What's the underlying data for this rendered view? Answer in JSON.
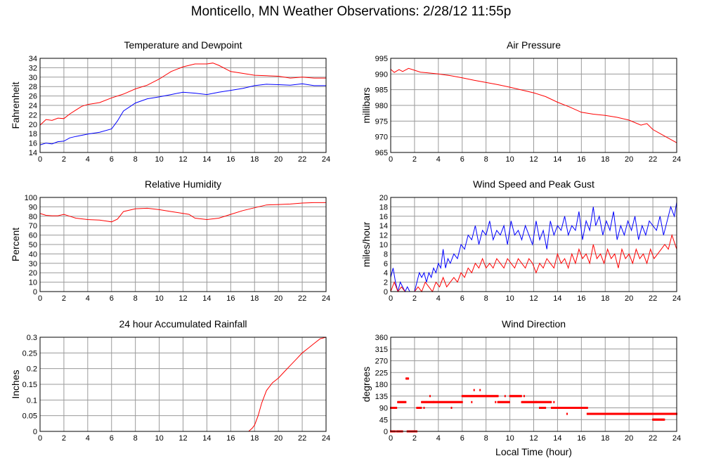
{
  "page_title": "Monticello, MN Weather Observations: 2/28/12 11:55p",
  "colors": {
    "temperature": "#ff0000",
    "dewpoint": "#0000ff",
    "gust": "#0000ff",
    "speed": "#ff0000",
    "grid": "#9a9a9a",
    "background": "#ffffff"
  },
  "chart_data": [
    {
      "id": "temperature-dewpoint",
      "type": "line",
      "title": "Temperature and Dewpoint",
      "ylabel": "Fahrenheit",
      "xlabel": "",
      "xlim": [
        0,
        24
      ],
      "ylim": [
        14,
        34
      ],
      "yticks": [
        14,
        16,
        18,
        20,
        22,
        24,
        26,
        28,
        30,
        32,
        34
      ],
      "xticks": [
        0,
        2,
        4,
        6,
        8,
        10,
        12,
        14,
        16,
        18,
        20,
        22,
        24
      ],
      "grid": true,
      "series": [
        {
          "color": "#ff0000",
          "x": [
            0,
            0.5,
            1,
            1.5,
            2,
            2.5,
            3,
            3.5,
            4,
            5,
            6,
            7,
            8,
            9,
            10,
            11,
            12,
            13,
            14,
            14.5,
            15,
            16,
            17,
            18,
            19,
            20,
            21,
            22,
            23,
            24
          ],
          "y": [
            19.8,
            21,
            20.8,
            21.3,
            21.2,
            22.2,
            23,
            23.8,
            24.2,
            24.6,
            25.6,
            26.4,
            27.5,
            28.3,
            29.6,
            31.2,
            32.2,
            32.8,
            32.8,
            33,
            32.5,
            31.2,
            30.8,
            30.4,
            30.3,
            30.2,
            29.8,
            30,
            29.8,
            29.8
          ]
        },
        {
          "color": "#0000ff",
          "x": [
            0,
            0.5,
            1,
            1.5,
            2,
            2.5,
            3,
            4,
            5,
            6,
            6.5,
            7,
            8,
            9,
            10,
            11,
            12,
            13,
            14,
            15,
            16,
            17,
            18,
            19,
            20,
            21,
            22,
            23,
            24
          ],
          "y": [
            15.6,
            16,
            15.8,
            16.3,
            16.4,
            17.1,
            17.4,
            17.9,
            18.3,
            19,
            20.7,
            22.8,
            24.5,
            25.4,
            25.8,
            26.3,
            26.8,
            26.6,
            26.3,
            26.8,
            27.2,
            27.6,
            28.2,
            28.5,
            28.4,
            28.3,
            28.6,
            28.2,
            28.2
          ]
        }
      ]
    },
    {
      "id": "air-pressure",
      "type": "line",
      "title": "Air Pressure",
      "ylabel": "millibars",
      "xlabel": "",
      "xlim": [
        0,
        24
      ],
      "ylim": [
        965,
        995
      ],
      "yticks": [
        965,
        970,
        975,
        980,
        985,
        990,
        995
      ],
      "xticks": [
        0,
        2,
        4,
        6,
        8,
        10,
        12,
        14,
        16,
        18,
        20,
        22,
        24
      ],
      "grid": true,
      "series": [
        {
          "color": "#ff0000",
          "x": [
            0,
            0.3,
            0.7,
            1,
            1.5,
            2,
            2.5,
            3,
            4,
            5,
            6,
            7,
            8,
            9,
            10,
            11,
            12,
            13,
            14,
            15,
            16,
            17,
            18,
            19,
            20,
            21,
            21.5,
            22,
            23,
            24
          ],
          "y": [
            991.5,
            990.5,
            991.4,
            990.8,
            991.8,
            991.2,
            990.6,
            990.4,
            990,
            989.5,
            988.8,
            988,
            987.3,
            986.6,
            985.8,
            984.9,
            984,
            982.8,
            981,
            979.5,
            977.8,
            977.2,
            976.8,
            976.2,
            975.3,
            973.7,
            974.2,
            972.3,
            970.2,
            968.1
          ]
        }
      ]
    },
    {
      "id": "relative-humidity",
      "type": "line",
      "title": "Relative Humidity",
      "ylabel": "Percent",
      "xlabel": "",
      "xlim": [
        0,
        24
      ],
      "ylim": [
        0,
        100
      ],
      "yticks": [
        0,
        10,
        20,
        30,
        40,
        50,
        60,
        70,
        80,
        90,
        100
      ],
      "xticks": [
        0,
        2,
        4,
        6,
        8,
        10,
        12,
        14,
        16,
        18,
        20,
        22,
        24
      ],
      "grid": true,
      "series": [
        {
          "color": "#ff0000",
          "x": [
            0,
            0.5,
            1,
            1.5,
            2,
            2.5,
            3,
            4,
            5,
            5.5,
            6,
            6.5,
            7,
            8,
            9,
            10,
            11,
            12,
            12.5,
            13,
            14,
            15,
            16,
            17,
            18,
            19,
            20,
            21,
            22,
            23,
            24
          ],
          "y": [
            83,
            81,
            80.5,
            80.5,
            82,
            80,
            78,
            76.5,
            76,
            75,
            74,
            77,
            85,
            88,
            88.5,
            87,
            85,
            83,
            82,
            78,
            76.5,
            78,
            82,
            86,
            89,
            92,
            92.5,
            93,
            94,
            94.5,
            94.5
          ]
        }
      ]
    },
    {
      "id": "wind-speed-gust",
      "type": "line",
      "title": "Wind Speed and Peak Gust",
      "ylabel": "miles/hour",
      "xlabel": "",
      "xlim": [
        0,
        24
      ],
      "ylim": [
        0,
        20
      ],
      "yticks": [
        0,
        2,
        4,
        6,
        8,
        10,
        12,
        14,
        16,
        18,
        20
      ],
      "xticks": [
        0,
        2,
        4,
        6,
        8,
        10,
        12,
        14,
        16,
        18,
        20,
        22,
        24
      ],
      "grid": true,
      "series": [
        {
          "color": "#0000ff",
          "x": [
            0,
            0.2,
            0.4,
            0.6,
            0.8,
            1,
            1.2,
            1.4,
            1.6,
            2,
            2.2,
            2.4,
            2.6,
            2.8,
            3,
            3.2,
            3.4,
            3.6,
            3.8,
            4,
            4.2,
            4.4,
            4.6,
            4.8,
            5,
            5.3,
            5.6,
            5.9,
            6.2,
            6.5,
            6.8,
            7.1,
            7.4,
            7.7,
            8,
            8.3,
            8.6,
            8.9,
            9.2,
            9.5,
            9.8,
            10.1,
            10.4,
            10.7,
            11,
            11.3,
            11.6,
            11.9,
            12.2,
            12.5,
            12.8,
            13.1,
            13.4,
            13.7,
            14,
            14.3,
            14.6,
            14.9,
            15.2,
            15.5,
            15.8,
            16.1,
            16.4,
            16.7,
            17,
            17.2,
            17.5,
            17.8,
            18.1,
            18.4,
            18.7,
            19,
            19.3,
            19.6,
            19.9,
            20.2,
            20.5,
            20.8,
            21.1,
            21.4,
            21.7,
            22,
            22.3,
            22.6,
            22.9,
            23.2,
            23.5,
            23.8,
            24
          ],
          "y": [
            3,
            5,
            2,
            0,
            2,
            1,
            0,
            1,
            0,
            0,
            2,
            4,
            3,
            4,
            2,
            4,
            3,
            5,
            4,
            6,
            5,
            9,
            5,
            7,
            6,
            8,
            7,
            10,
            9,
            12,
            11,
            14,
            10,
            13,
            12,
            15,
            11,
            13,
            12,
            14,
            10,
            15,
            12,
            13,
            11,
            14,
            12,
            10,
            15,
            11,
            13,
            9,
            15,
            12,
            14,
            13,
            16,
            12,
            14,
            13,
            17,
            11,
            15,
            13,
            18,
            14,
            16,
            12,
            15,
            13,
            17,
            11,
            14,
            12,
            15,
            13,
            16,
            11,
            14,
            12,
            15,
            14,
            13,
            16,
            12,
            15,
            18,
            16,
            19
          ]
        },
        {
          "color": "#ff0000",
          "x": [
            0,
            0.3,
            0.6,
            0.9,
            1.2,
            1.5,
            2,
            2.3,
            2.6,
            2.9,
            3.2,
            3.5,
            3.8,
            4.1,
            4.4,
            4.7,
            5,
            5.3,
            5.6,
            5.9,
            6.2,
            6.5,
            6.8,
            7.1,
            7.4,
            7.7,
            8,
            8.3,
            8.6,
            8.9,
            9.2,
            9.5,
            9.8,
            10.1,
            10.4,
            10.7,
            11,
            11.3,
            11.6,
            11.9,
            12.2,
            12.5,
            12.8,
            13.1,
            13.4,
            13.7,
            14,
            14.3,
            14.6,
            14.9,
            15.2,
            15.5,
            15.8,
            16.1,
            16.4,
            16.7,
            17,
            17.3,
            17.6,
            17.9,
            18.2,
            18.5,
            18.8,
            19.1,
            19.4,
            19.7,
            20,
            20.3,
            20.6,
            20.9,
            21.2,
            21.5,
            21.8,
            22.1,
            22.4,
            22.7,
            23,
            23.3,
            23.6,
            24
          ],
          "y": [
            0,
            2,
            0,
            1,
            0,
            0,
            0,
            1,
            0,
            2,
            1,
            0,
            2,
            1,
            3,
            1,
            2,
            3,
            2,
            4,
            3,
            5,
            4,
            6,
            5,
            7,
            5,
            6,
            5,
            7,
            6,
            5,
            7,
            6,
            5,
            7,
            6,
            5,
            7,
            6,
            4,
            6,
            5,
            7,
            6,
            5,
            8,
            6,
            7,
            5,
            8,
            6,
            9,
            7,
            8,
            6,
            10,
            7,
            8,
            6,
            9,
            7,
            8,
            5,
            9,
            7,
            8,
            6,
            9,
            7,
            8,
            6,
            9,
            7,
            8,
            9,
            10,
            9,
            12,
            9
          ]
        }
      ]
    },
    {
      "id": "rainfall",
      "type": "line",
      "title": "24 hour Accumulated Rainfall",
      "ylabel": "Inches",
      "xlabel": "",
      "xlim": [
        0,
        24
      ],
      "ylim": [
        0,
        0.3
      ],
      "yticks": [
        0,
        0.05,
        0.1,
        0.15,
        0.2,
        0.25,
        0.3
      ],
      "xticks": [
        0,
        2,
        4,
        6,
        8,
        10,
        12,
        14,
        16,
        18,
        20,
        22,
        24
      ],
      "grid": true,
      "series": [
        {
          "color": "#ff0000",
          "x": [
            0,
            17.5,
            17.8,
            18,
            18.3,
            18.6,
            19,
            19.5,
            20,
            20.5,
            21,
            21.5,
            22,
            22.5,
            23,
            23.5,
            24
          ],
          "y": [
            0,
            0,
            0.01,
            0.02,
            0.05,
            0.09,
            0.13,
            0.155,
            0.17,
            0.19,
            0.21,
            0.23,
            0.25,
            0.265,
            0.28,
            0.295,
            0.3
          ]
        }
      ]
    },
    {
      "id": "wind-direction",
      "type": "scatter",
      "title": "Wind Direction",
      "ylabel": "degrees",
      "xlabel": "Local Time (hour)",
      "xlim": [
        0,
        24
      ],
      "ylim": [
        0,
        360
      ],
      "yticks": [
        0,
        45,
        90,
        135,
        180,
        225,
        270,
        315,
        360
      ],
      "xticks": [
        0,
        2,
        4,
        6,
        8,
        10,
        12,
        14,
        16,
        18,
        20,
        22,
        24
      ],
      "grid": true,
      "series": [
        {
          "color": "#ff0000",
          "segments": [
            {
              "x0": 0.0,
              "x1": 0.4,
              "y": 0
            },
            {
              "x0": 0.0,
              "x1": 0.5,
              "y": 90
            },
            {
              "x0": 0.5,
              "x1": 1.0,
              "y": 0
            },
            {
              "x0": 0.6,
              "x1": 1.3,
              "y": 112
            },
            {
              "x0": 1.3,
              "x1": 1.5,
              "y": 202
            },
            {
              "x0": 1.4,
              "x1": 2.2,
              "y": 0
            },
            {
              "x0": 2.2,
              "x1": 2.6,
              "y": 90
            },
            {
              "x0": 2.6,
              "x1": 3.0,
              "y": 112
            },
            {
              "x0": 3.0,
              "x1": 3.6,
              "y": 112
            },
            {
              "x0": 3.6,
              "x1": 6.0,
              "y": 112
            },
            {
              "x0": 6.0,
              "x1": 9.0,
              "y": 135
            },
            {
              "x0": 9.0,
              "x1": 10.0,
              "y": 112
            },
            {
              "x0": 10.0,
              "x1": 11.0,
              "y": 135
            },
            {
              "x0": 11.0,
              "x1": 12.2,
              "y": 112
            },
            {
              "x0": 12.2,
              "x1": 13.5,
              "y": 112
            },
            {
              "x0": 12.5,
              "x1": 13.0,
              "y": 90
            },
            {
              "x0": 13.5,
              "x1": 16.5,
              "y": 90
            },
            {
              "x0": 16.5,
              "x1": 24.0,
              "y": 67
            },
            {
              "x0": 22.0,
              "x1": 23.0,
              "y": 45
            }
          ],
          "points": [
            {
              "x": 2.8,
              "y": 90
            },
            {
              "x": 3.3,
              "y": 135
            },
            {
              "x": 5.1,
              "y": 90
            },
            {
              "x": 7.0,
              "y": 158
            },
            {
              "x": 7.5,
              "y": 158
            },
            {
              "x": 6.8,
              "y": 112
            },
            {
              "x": 8.8,
              "y": 112
            },
            {
              "x": 9.6,
              "y": 135
            },
            {
              "x": 11.2,
              "y": 135
            },
            {
              "x": 13.7,
              "y": 112
            },
            {
              "x": 14.8,
              "y": 67
            }
          ]
        }
      ]
    }
  ]
}
